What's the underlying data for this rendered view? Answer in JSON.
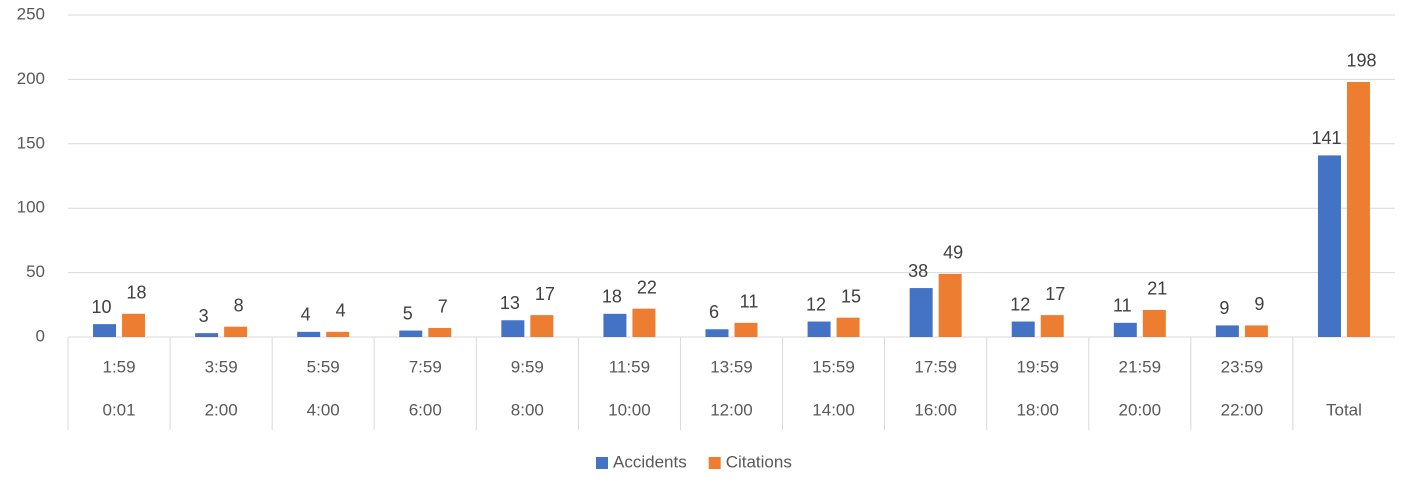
{
  "chart_data": {
    "type": "bar",
    "categories": [
      "1:59",
      "3:59",
      "5:59",
      "7:59",
      "9:59",
      "11:59",
      "13:59",
      "15:59",
      "17:59",
      "19:59",
      "21:59",
      "23:59",
      null
    ],
    "category_groups": [
      "0:01",
      "2:00",
      "4:00",
      "6:00",
      "8:00",
      "10:00",
      "12:00",
      "14:00",
      "16:00",
      "18:00",
      "20:00",
      "22:00",
      "Total"
    ],
    "series": [
      {
        "name": "Accidents",
        "color": "#4472c4",
        "values": [
          10,
          3,
          4,
          5,
          13,
          18,
          6,
          12,
          38,
          12,
          11,
          9,
          141
        ]
      },
      {
        "name": "Citations",
        "color": "#ed7d31",
        "values": [
          18,
          8,
          4,
          7,
          17,
          22,
          11,
          15,
          49,
          17,
          21,
          9,
          198
        ]
      }
    ],
    "ylim": [
      0,
      250
    ],
    "yticks": [
      0,
      50,
      100,
      150,
      200,
      250
    ],
    "grid": true,
    "legend": "bottom"
  }
}
